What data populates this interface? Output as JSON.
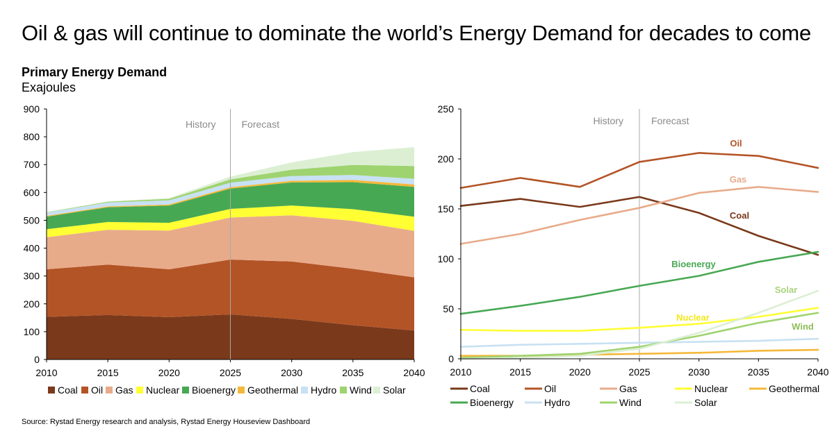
{
  "headline": "Oil & gas will continue to dominate the world’s Energy Demand for decades to come",
  "subtitle": "Primary Energy Demand",
  "unit": "Exajoules",
  "source": "Source: Rystad Energy research and analysis, Rystad Energy Houseview Dashboard",
  "colors": {
    "Coal": "#7a391b",
    "Oil": "#b35426",
    "Gas": "#e8ab8a",
    "Nuclear": "#ffff33",
    "Bioenergy": "#47a853",
    "Geothermal": "#f5b83a",
    "Hydro": "#c8e1f3",
    "Wind": "#9ed36f",
    "Solar": "#dcefd3"
  },
  "chart_data": [
    {
      "type": "area",
      "stacked": true,
      "x": [
        2010,
        2015,
        2020,
        2025,
        2030,
        2035,
        2040
      ],
      "xlim": [
        2010,
        2040
      ],
      "ylim": [
        0,
        900
      ],
      "yticks": [
        "0",
        "100",
        "200",
        "300",
        "400",
        "500",
        "600",
        "700",
        "800",
        "900"
      ],
      "xticks": [
        "2010",
        "2015",
        "2020",
        "2025",
        "2030",
        "2035",
        "2040"
      ],
      "annotations": {
        "history": "History",
        "forecast": "Forecast",
        "divider_year": 2025
      },
      "legend": [
        "Coal",
        "Oil",
        "Gas",
        "Nuclear",
        "Bioenergy",
        "Geothermal",
        "Hydro",
        "Wind",
        "Solar"
      ],
      "series": [
        {
          "name": "Coal",
          "values": [
            153,
            160,
            152,
            162,
            146,
            123,
            104
          ]
        },
        {
          "name": "Oil",
          "values": [
            171,
            181,
            172,
            197,
            206,
            203,
            191
          ]
        },
        {
          "name": "Gas",
          "values": [
            115,
            125,
            139,
            151,
            166,
            172,
            167
          ]
        },
        {
          "name": "Nuclear",
          "values": [
            29,
            28,
            28,
            31,
            35,
            42,
            51
          ]
        },
        {
          "name": "Bioenergy",
          "values": [
            45,
            53,
            62,
            73,
            83,
            97,
            107
          ]
        },
        {
          "name": "Geothermal",
          "values": [
            3,
            3,
            4,
            5,
            6,
            8,
            9
          ]
        },
        {
          "name": "Hydro",
          "values": [
            12,
            14,
            15,
            16,
            17,
            18,
            20
          ]
        },
        {
          "name": "Wind",
          "values": [
            1,
            3,
            5,
            12,
            23,
            36,
            46
          ]
        },
        {
          "name": "Solar",
          "values": [
            0,
            1,
            3,
            10,
            26,
            46,
            68
          ]
        }
      ]
    },
    {
      "type": "line",
      "x": [
        2010,
        2015,
        2020,
        2025,
        2030,
        2035,
        2040
      ],
      "xlim": [
        2010,
        2040
      ],
      "ylim": [
        0,
        250
      ],
      "yticks": [
        "0",
        "50",
        "100",
        "150",
        "200",
        "250"
      ],
      "xticks": [
        "2010",
        "2015",
        "2020",
        "2025",
        "2030",
        "2035",
        "2040"
      ],
      "annotations": {
        "history": "History",
        "forecast": "Forecast",
        "divider_year": 2025
      },
      "legend": [
        "Coal",
        "Oil",
        "Gas",
        "Nuclear",
        "Geothermal",
        "Bioenergy",
        "Hydro",
        "Wind",
        "Solar"
      ],
      "direct_labels": [
        "Oil",
        "Gas",
        "Coal",
        "Bioenergy",
        "Solar",
        "Nuclear",
        "Wind"
      ],
      "series": [
        {
          "name": "Coal",
          "values": [
            153,
            160,
            152,
            162,
            146,
            123,
            104
          ]
        },
        {
          "name": "Oil",
          "values": [
            171,
            181,
            172,
            197,
            206,
            203,
            191
          ]
        },
        {
          "name": "Gas",
          "values": [
            115,
            125,
            139,
            151,
            166,
            172,
            167
          ]
        },
        {
          "name": "Nuclear",
          "values": [
            29,
            28,
            28,
            31,
            35,
            42,
            51
          ]
        },
        {
          "name": "Geothermal",
          "values": [
            3,
            3,
            4,
            5,
            6,
            8,
            9
          ]
        },
        {
          "name": "Bioenergy",
          "values": [
            45,
            53,
            62,
            73,
            83,
            97,
            107
          ]
        },
        {
          "name": "Hydro",
          "values": [
            12,
            14,
            15,
            16,
            17,
            18,
            20
          ]
        },
        {
          "name": "Wind",
          "values": [
            1,
            3,
            5,
            12,
            23,
            36,
            46
          ]
        },
        {
          "name": "Solar",
          "values": [
            0,
            1,
            3,
            10,
            26,
            46,
            68
          ]
        }
      ]
    }
  ]
}
